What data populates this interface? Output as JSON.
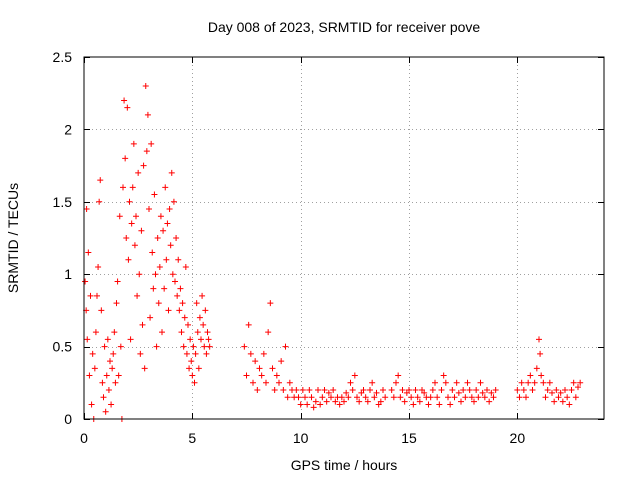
{
  "chart_data": {
    "type": "scatter",
    "title": "Day 008 of 2023, SRMTID for receiver pove",
    "xlabel": "GPS time / hours",
    "ylabel": "SRMTID / TECUs",
    "xlim": [
      0,
      24
    ],
    "ylim": [
      0,
      2.5
    ],
    "xticks": [
      0,
      5,
      10,
      15,
      20
    ],
    "xtick_labels": [
      "0",
      "5",
      "10",
      "15",
      "20"
    ],
    "yticks": [
      0,
      0.5,
      1,
      1.5,
      2,
      2.5
    ],
    "ytick_labels": [
      "0",
      "0.5",
      "1",
      "1.5",
      "2",
      "2.5"
    ],
    "grid": true,
    "marker": "+",
    "series": [
      {
        "name": "SRMTID",
        "color": "#ff0000",
        "points": [
          [
            0.05,
            0.95
          ],
          [
            0.1,
            0.75
          ],
          [
            0.12,
            1.45
          ],
          [
            0.15,
            0.55
          ],
          [
            0.2,
            1.15
          ],
          [
            0.25,
            0.3
          ],
          [
            0.3,
            0.85
          ],
          [
            0.35,
            0.1
          ],
          [
            0.4,
            0.45
          ],
          [
            0.45,
            0.0
          ],
          [
            0.5,
            0.35
          ],
          [
            0.55,
            0.6
          ],
          [
            0.6,
            0.85
          ],
          [
            0.65,
            1.05
          ],
          [
            0.7,
            1.5
          ],
          [
            0.75,
            1.65
          ],
          [
            0.8,
            0.75
          ],
          [
            0.85,
            0.25
          ],
          [
            0.9,
            0.15
          ],
          [
            0.95,
            0.5
          ],
          [
            1.0,
            0.05
          ],
          [
            1.05,
            0.3
          ],
          [
            1.1,
            0.55
          ],
          [
            1.15,
            0.2
          ],
          [
            1.2,
            0.4
          ],
          [
            1.25,
            0.1
          ],
          [
            1.3,
            0.35
          ],
          [
            1.35,
            0.45
          ],
          [
            1.4,
            0.6
          ],
          [
            1.45,
            0.25
          ],
          [
            1.5,
            0.8
          ],
          [
            1.55,
            0.95
          ],
          [
            1.6,
            0.3
          ],
          [
            1.65,
            1.4
          ],
          [
            1.7,
            0.5
          ],
          [
            1.75,
            0.0
          ],
          [
            1.8,
            1.6
          ],
          [
            1.85,
            2.2
          ],
          [
            1.9,
            1.8
          ],
          [
            1.95,
            1.25
          ],
          [
            2.0,
            2.15
          ],
          [
            2.05,
            1.1
          ],
          [
            2.1,
            1.5
          ],
          [
            2.15,
            0.55
          ],
          [
            2.2,
            1.35
          ],
          [
            2.25,
            1.6
          ],
          [
            2.3,
            1.9
          ],
          [
            2.35,
            1.2
          ],
          [
            2.4,
            1.4
          ],
          [
            2.45,
            0.85
          ],
          [
            2.5,
            1.7
          ],
          [
            2.55,
            1.0
          ],
          [
            2.6,
            0.45
          ],
          [
            2.65,
            1.3
          ],
          [
            2.7,
            0.65
          ],
          [
            2.75,
            1.75
          ],
          [
            2.8,
            0.35
          ],
          [
            2.85,
            2.3
          ],
          [
            2.9,
            1.85
          ],
          [
            2.95,
            2.1
          ],
          [
            3.0,
            1.45
          ],
          [
            3.05,
            0.7
          ],
          [
            3.1,
            1.9
          ],
          [
            3.15,
            1.15
          ],
          [
            3.2,
            0.9
          ],
          [
            3.25,
            1.55
          ],
          [
            3.3,
            1.0
          ],
          [
            3.35,
            0.5
          ],
          [
            3.4,
            1.25
          ],
          [
            3.45,
            0.8
          ],
          [
            3.5,
            1.05
          ],
          [
            3.55,
            1.4
          ],
          [
            3.6,
            0.6
          ],
          [
            3.65,
            1.3
          ],
          [
            3.7,
            0.9
          ],
          [
            3.75,
            1.6
          ],
          [
            3.8,
            1.1
          ],
          [
            3.85,
            1.35
          ],
          [
            3.9,
            0.75
          ],
          [
            3.95,
            1.45
          ],
          [
            4.0,
            1.2
          ],
          [
            4.05,
            1.7
          ],
          [
            4.1,
            1.0
          ],
          [
            4.15,
            1.5
          ],
          [
            4.2,
            0.95
          ],
          [
            4.25,
            1.25
          ],
          [
            4.3,
            0.85
          ],
          [
            4.35,
            1.1
          ],
          [
            4.4,
            0.75
          ],
          [
            4.45,
            0.9
          ],
          [
            4.5,
            0.6
          ],
          [
            4.55,
            0.8
          ],
          [
            4.6,
            0.5
          ],
          [
            4.65,
            0.7
          ],
          [
            4.7,
            1.05
          ],
          [
            4.75,
            0.45
          ],
          [
            4.8,
            0.65
          ],
          [
            4.85,
            0.35
          ],
          [
            4.9,
            0.55
          ],
          [
            4.95,
            0.4
          ],
          [
            5.0,
            0.3
          ],
          [
            5.05,
            0.5
          ],
          [
            5.1,
            0.25
          ],
          [
            5.15,
            0.45
          ],
          [
            5.2,
            0.8
          ],
          [
            5.25,
            0.6
          ],
          [
            5.3,
            0.35
          ],
          [
            5.35,
            0.7
          ],
          [
            5.4,
            0.55
          ],
          [
            5.45,
            0.85
          ],
          [
            5.5,
            0.65
          ],
          [
            5.55,
            0.5
          ],
          [
            5.6,
            0.75
          ],
          [
            5.65,
            0.45
          ],
          [
            5.7,
            0.6
          ],
          [
            5.75,
            0.55
          ],
          [
            5.8,
            0.5
          ],
          [
            7.4,
            0.5
          ],
          [
            7.5,
            0.3
          ],
          [
            7.6,
            0.65
          ],
          [
            7.7,
            0.45
          ],
          [
            7.8,
            0.25
          ],
          [
            7.9,
            0.4
          ],
          [
            8.0,
            0.2
          ],
          [
            8.1,
            0.35
          ],
          [
            8.2,
            0.3
          ],
          [
            8.3,
            0.45
          ],
          [
            8.4,
            0.25
          ],
          [
            8.5,
            0.6
          ],
          [
            8.6,
            0.8
          ],
          [
            8.7,
            0.35
          ],
          [
            8.8,
            0.2
          ],
          [
            8.9,
            0.3
          ],
          [
            9.0,
            0.25
          ],
          [
            9.1,
            0.4
          ],
          [
            9.2,
            0.2
          ],
          [
            9.3,
            0.5
          ],
          [
            9.4,
            0.15
          ],
          [
            9.5,
            0.25
          ],
          [
            9.6,
            0.2
          ],
          [
            9.7,
            0.15
          ],
          [
            9.8,
            0.2
          ],
          [
            9.9,
            0.15
          ],
          [
            10.0,
            0.1
          ],
          [
            10.1,
            0.2
          ],
          [
            10.2,
            0.15
          ],
          [
            10.3,
            0.1
          ],
          [
            10.4,
            0.2
          ],
          [
            10.5,
            0.15
          ],
          [
            10.6,
            0.08
          ],
          [
            10.7,
            0.12
          ],
          [
            10.8,
            0.2
          ],
          [
            10.9,
            0.1
          ],
          [
            11.0,
            0.15
          ],
          [
            11.1,
            0.2
          ],
          [
            11.2,
            0.12
          ],
          [
            11.3,
            0.18
          ],
          [
            11.4,
            0.15
          ],
          [
            11.5,
            0.2
          ],
          [
            11.6,
            0.12
          ],
          [
            11.7,
            0.15
          ],
          [
            11.8,
            0.1
          ],
          [
            11.9,
            0.15
          ],
          [
            12.0,
            0.12
          ],
          [
            12.1,
            0.18
          ],
          [
            12.2,
            0.15
          ],
          [
            12.3,
            0.25
          ],
          [
            12.4,
            0.2
          ],
          [
            12.5,
            0.3
          ],
          [
            12.6,
            0.15
          ],
          [
            12.7,
            0.12
          ],
          [
            12.8,
            0.18
          ],
          [
            12.9,
            0.2
          ],
          [
            13.0,
            0.15
          ],
          [
            13.1,
            0.12
          ],
          [
            13.2,
            0.2
          ],
          [
            13.3,
            0.25
          ],
          [
            13.4,
            0.15
          ],
          [
            13.5,
            0.18
          ],
          [
            13.6,
            0.1
          ],
          [
            13.7,
            0.12
          ],
          [
            13.8,
            0.2
          ],
          [
            13.9,
            0.15
          ],
          [
            14.2,
            0.2
          ],
          [
            14.3,
            0.15
          ],
          [
            14.4,
            0.25
          ],
          [
            14.5,
            0.3
          ],
          [
            14.6,
            0.15
          ],
          [
            14.7,
            0.2
          ],
          [
            14.8,
            0.12
          ],
          [
            14.9,
            0.18
          ],
          [
            15.0,
            0.2
          ],
          [
            15.1,
            0.15
          ],
          [
            15.2,
            0.1
          ],
          [
            15.3,
            0.2
          ],
          [
            15.4,
            0.15
          ],
          [
            15.5,
            0.12
          ],
          [
            15.6,
            0.2
          ],
          [
            15.7,
            0.18
          ],
          [
            15.8,
            0.15
          ],
          [
            15.9,
            0.1
          ],
          [
            16.0,
            0.15
          ],
          [
            16.1,
            0.2
          ],
          [
            16.2,
            0.25
          ],
          [
            16.3,
            0.15
          ],
          [
            16.4,
            0.1
          ],
          [
            16.5,
            0.2
          ],
          [
            16.6,
            0.3
          ],
          [
            16.7,
            0.25
          ],
          [
            16.8,
            0.15
          ],
          [
            16.9,
            0.1
          ],
          [
            17.0,
            0.2
          ],
          [
            17.1,
            0.15
          ],
          [
            17.2,
            0.25
          ],
          [
            17.3,
            0.18
          ],
          [
            17.4,
            0.12
          ],
          [
            17.5,
            0.2
          ],
          [
            17.6,
            0.15
          ],
          [
            17.7,
            0.25
          ],
          [
            17.8,
            0.2
          ],
          [
            17.9,
            0.15
          ],
          [
            18.0,
            0.12
          ],
          [
            18.1,
            0.2
          ],
          [
            18.2,
            0.15
          ],
          [
            18.3,
            0.25
          ],
          [
            18.4,
            0.18
          ],
          [
            18.5,
            0.15
          ],
          [
            18.6,
            0.2
          ],
          [
            18.7,
            0.12
          ],
          [
            18.8,
            0.18
          ],
          [
            18.9,
            0.15
          ],
          [
            19.0,
            0.2
          ],
          [
            20.0,
            0.2
          ],
          [
            20.1,
            0.15
          ],
          [
            20.2,
            0.25
          ],
          [
            20.3,
            0.2
          ],
          [
            20.4,
            0.15
          ],
          [
            20.5,
            0.25
          ],
          [
            20.6,
            0.3
          ],
          [
            20.7,
            0.2
          ],
          [
            20.8,
            0.25
          ],
          [
            20.9,
            0.35
          ],
          [
            21.0,
            0.55
          ],
          [
            21.05,
            0.45
          ],
          [
            21.1,
            0.3
          ],
          [
            21.2,
            0.25
          ],
          [
            21.3,
            0.15
          ],
          [
            21.4,
            0.2
          ],
          [
            21.5,
            0.25
          ],
          [
            21.6,
            0.18
          ],
          [
            21.7,
            0.12
          ],
          [
            21.8,
            0.2
          ],
          [
            21.9,
            0.15
          ],
          [
            22.0,
            0.18
          ],
          [
            22.1,
            0.12
          ],
          [
            22.2,
            0.2
          ],
          [
            22.3,
            0.15
          ],
          [
            22.4,
            0.1
          ],
          [
            22.5,
            0.2
          ],
          [
            22.6,
            0.25
          ],
          [
            22.7,
            0.15
          ],
          [
            22.8,
            0.22
          ],
          [
            22.9,
            0.25
          ]
        ]
      }
    ]
  }
}
